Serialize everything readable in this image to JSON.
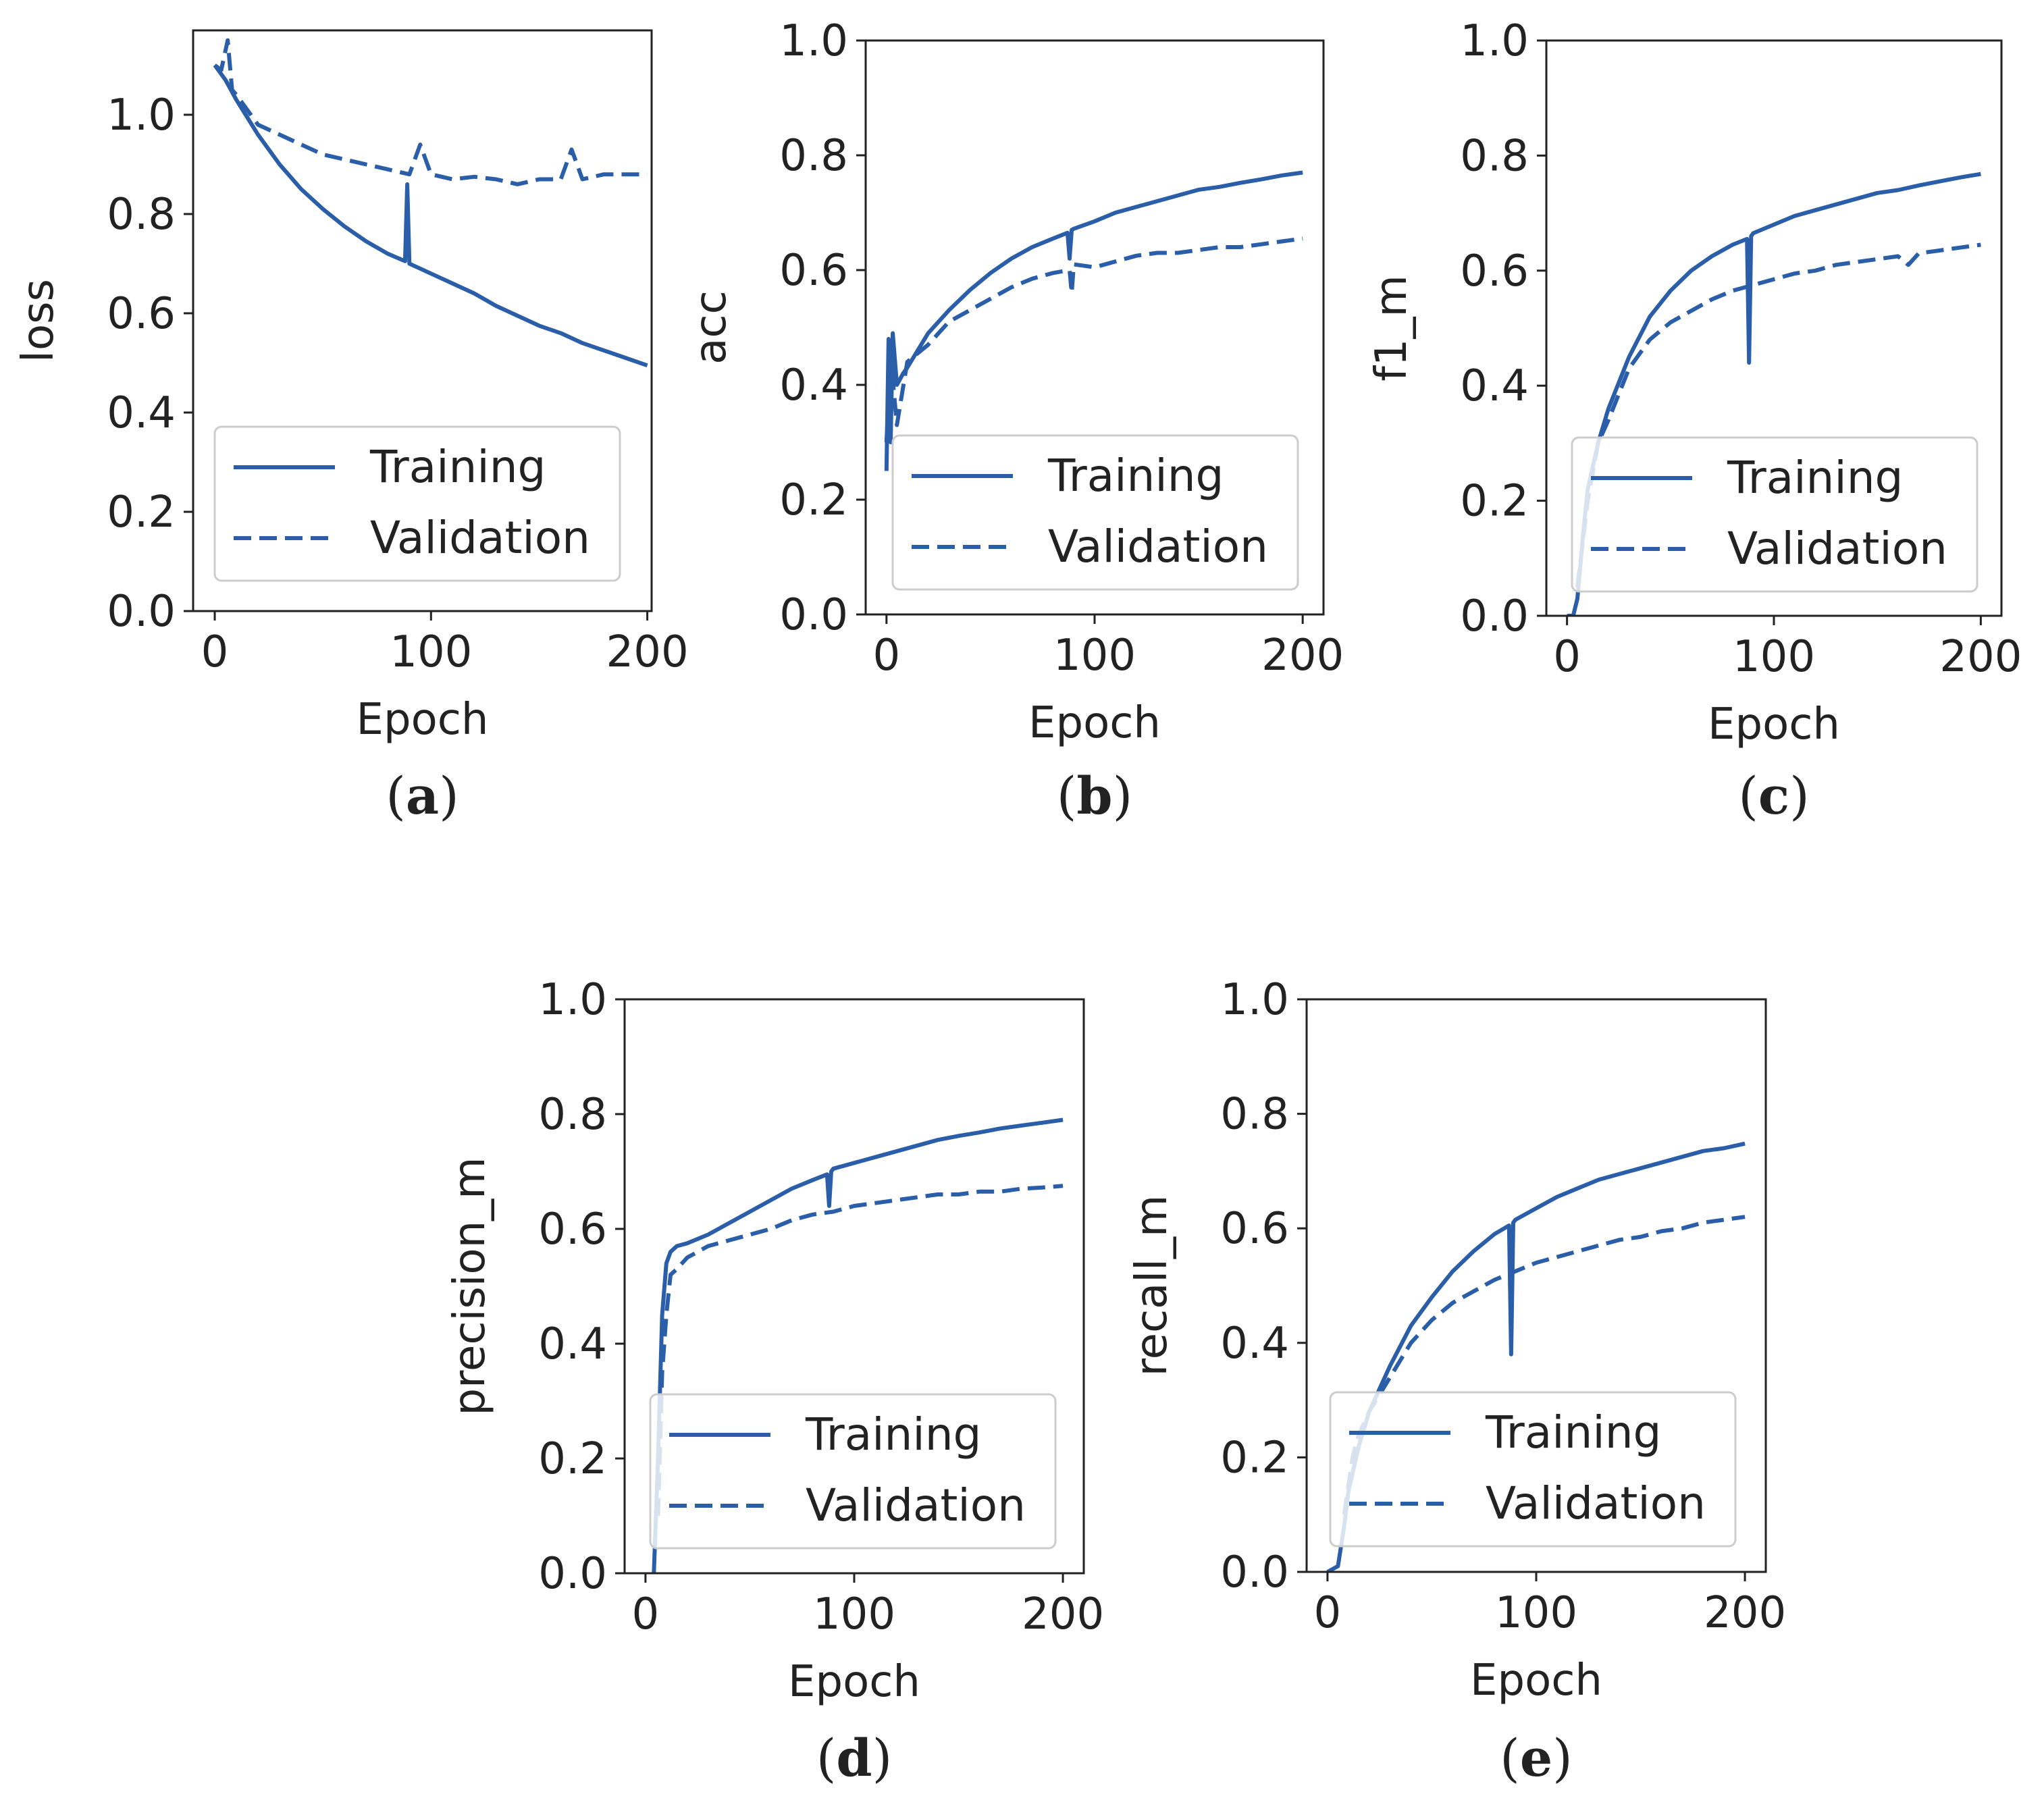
{
  "figure": {
    "legend_training": "Training",
    "legend_validation": "Validation",
    "line_color": "#2a5ea8",
    "legend_position": "lower-right"
  },
  "chart_data": [
    {
      "type": "line",
      "panel": "a",
      "caption": "a",
      "caption_open": "(",
      "caption_close": ")",
      "ylabel": "loss",
      "xlabel": "Epoch",
      "xlim": [
        -10,
        202
      ],
      "ylim": [
        0.0,
        1.17
      ],
      "xticks": [
        0,
        100,
        200
      ],
      "xtick_labels": [
        "0",
        "100",
        "200"
      ],
      "yticks": [
        0.0,
        0.2,
        0.4,
        0.6,
        0.8,
        1.0
      ],
      "ytick_labels": [
        "0.0",
        "0.2",
        "0.4",
        "0.6",
        "0.8",
        "1.0"
      ],
      "series": [
        {
          "name": "Training",
          "style": "solid",
          "x": [
            0,
            5,
            10,
            20,
            30,
            40,
            50,
            60,
            70,
            80,
            88,
            89,
            90,
            95,
            100,
            110,
            120,
            130,
            140,
            150,
            160,
            170,
            180,
            190,
            200
          ],
          "values": [
            1.1,
            1.07,
            1.03,
            0.96,
            0.9,
            0.85,
            0.81,
            0.775,
            0.745,
            0.72,
            0.705,
            0.86,
            0.7,
            0.69,
            0.68,
            0.66,
            0.64,
            0.615,
            0.595,
            0.575,
            0.56,
            0.54,
            0.525,
            0.51,
            0.495
          ]
        },
        {
          "name": "Validation",
          "style": "dashed",
          "x": [
            0,
            3,
            6,
            8,
            10,
            15,
            20,
            30,
            40,
            50,
            60,
            70,
            80,
            90,
            95,
            100,
            110,
            120,
            130,
            140,
            150,
            160,
            165,
            170,
            180,
            190,
            200
          ],
          "values": [
            1.1,
            1.09,
            1.15,
            1.05,
            1.04,
            1.01,
            0.98,
            0.96,
            0.94,
            0.92,
            0.91,
            0.9,
            0.89,
            0.88,
            0.94,
            0.88,
            0.87,
            0.875,
            0.87,
            0.86,
            0.87,
            0.87,
            0.93,
            0.87,
            0.88,
            0.88,
            0.88
          ]
        }
      ]
    },
    {
      "type": "line",
      "panel": "b",
      "caption": "b",
      "caption_open": "(",
      "caption_close": ")",
      "ylabel": "acc",
      "xlabel": "Epoch",
      "xlim": [
        -10,
        210
      ],
      "ylim": [
        0.0,
        1.0
      ],
      "xticks": [
        0,
        100,
        200
      ],
      "xtick_labels": [
        "0",
        "100",
        "200"
      ],
      "yticks": [
        0.0,
        0.2,
        0.4,
        0.6,
        0.8,
        1.0
      ],
      "ytick_labels": [
        "0.0",
        "0.2",
        "0.4",
        "0.6",
        "0.8",
        "1.0"
      ],
      "series": [
        {
          "name": "Training",
          "style": "solid",
          "x": [
            0,
            1,
            2,
            3,
            5,
            8,
            10,
            15,
            20,
            30,
            40,
            50,
            60,
            70,
            80,
            87,
            88,
            89,
            90,
            100,
            110,
            120,
            130,
            140,
            150,
            160,
            170,
            180,
            190,
            200
          ],
          "values": [
            0.25,
            0.48,
            0.3,
            0.49,
            0.4,
            0.42,
            0.43,
            0.46,
            0.49,
            0.53,
            0.565,
            0.595,
            0.62,
            0.64,
            0.655,
            0.665,
            0.62,
            0.67,
            0.672,
            0.685,
            0.7,
            0.71,
            0.72,
            0.73,
            0.74,
            0.745,
            0.752,
            0.758,
            0.765,
            0.77
          ]
        },
        {
          "name": "Validation",
          "style": "dashed",
          "x": [
            0,
            2,
            5,
            10,
            20,
            30,
            40,
            50,
            60,
            70,
            80,
            88,
            89,
            90,
            100,
            110,
            120,
            130,
            140,
            150,
            160,
            170,
            180,
            190,
            200
          ],
          "values": [
            0.3,
            0.45,
            0.33,
            0.44,
            0.47,
            0.51,
            0.53,
            0.55,
            0.57,
            0.585,
            0.595,
            0.6,
            0.56,
            0.61,
            0.605,
            0.615,
            0.625,
            0.63,
            0.63,
            0.635,
            0.64,
            0.64,
            0.645,
            0.65,
            0.655
          ]
        }
      ]
    },
    {
      "type": "line",
      "panel": "c",
      "caption": "c",
      "caption_open": "(",
      "caption_close": ")",
      "ylabel": "f1_m",
      "xlabel": "Epoch",
      "xlim": [
        -10,
        210
      ],
      "ylim": [
        0.0,
        1.0
      ],
      "xticks": [
        0,
        100,
        200
      ],
      "xtick_labels": [
        "0",
        "100",
        "200"
      ],
      "yticks": [
        0.0,
        0.2,
        0.4,
        0.6,
        0.8,
        1.0
      ],
      "ytick_labels": [
        "0.0",
        "0.2",
        "0.4",
        "0.6",
        "0.8",
        "1.0"
      ],
      "series": [
        {
          "name": "Training",
          "style": "solid",
          "x": [
            0,
            3,
            5,
            8,
            10,
            15,
            20,
            30,
            40,
            50,
            60,
            70,
            80,
            87,
            88,
            89,
            90,
            100,
            110,
            120,
            130,
            140,
            150,
            160,
            170,
            180,
            190,
            200
          ],
          "values": [
            0.0,
            0.0,
            0.03,
            0.15,
            0.22,
            0.3,
            0.36,
            0.45,
            0.52,
            0.565,
            0.6,
            0.625,
            0.645,
            0.655,
            0.44,
            0.66,
            0.665,
            0.68,
            0.695,
            0.705,
            0.715,
            0.725,
            0.735,
            0.74,
            0.748,
            0.755,
            0.762,
            0.768
          ]
        },
        {
          "name": "Validation",
          "style": "dashed",
          "x": [
            5,
            10,
            15,
            20,
            30,
            40,
            50,
            60,
            70,
            80,
            90,
            100,
            110,
            120,
            130,
            140,
            150,
            160,
            165,
            170,
            180,
            190,
            200
          ],
          "values": [
            0.05,
            0.2,
            0.3,
            0.34,
            0.43,
            0.48,
            0.51,
            0.53,
            0.55,
            0.565,
            0.575,
            0.585,
            0.595,
            0.6,
            0.61,
            0.615,
            0.62,
            0.625,
            0.61,
            0.63,
            0.635,
            0.64,
            0.645
          ]
        }
      ]
    },
    {
      "type": "line",
      "panel": "d",
      "caption": "d",
      "caption_open": "(",
      "caption_close": ")",
      "ylabel": "precision_m",
      "xlabel": "Epoch",
      "xlim": [
        -10,
        210
      ],
      "ylim": [
        0.0,
        1.0
      ],
      "xticks": [
        0,
        100,
        200
      ],
      "xtick_labels": [
        "0",
        "100",
        "200"
      ],
      "yticks": [
        0.0,
        0.2,
        0.4,
        0.6,
        0.8,
        1.0
      ],
      "ytick_labels": [
        "0.0",
        "0.2",
        "0.4",
        "0.6",
        "0.8",
        "1.0"
      ],
      "series": [
        {
          "name": "Training",
          "style": "solid",
          "x": [
            4,
            6,
            8,
            10,
            12,
            15,
            20,
            30,
            40,
            50,
            60,
            70,
            80,
            87,
            88,
            89,
            90,
            100,
            110,
            120,
            130,
            140,
            150,
            160,
            170,
            180,
            190,
            200
          ],
          "values": [
            0.0,
            0.2,
            0.45,
            0.54,
            0.56,
            0.57,
            0.575,
            0.59,
            0.61,
            0.63,
            0.65,
            0.67,
            0.685,
            0.695,
            0.64,
            0.7,
            0.705,
            0.715,
            0.725,
            0.735,
            0.745,
            0.755,
            0.762,
            0.768,
            0.775,
            0.78,
            0.785,
            0.79
          ]
        },
        {
          "name": "Validation",
          "style": "dashed",
          "x": [
            6,
            8,
            10,
            12,
            15,
            20,
            30,
            40,
            50,
            60,
            70,
            80,
            90,
            100,
            110,
            120,
            130,
            140,
            150,
            160,
            170,
            180,
            190,
            200
          ],
          "values": [
            0.1,
            0.35,
            0.45,
            0.52,
            0.53,
            0.55,
            0.57,
            0.58,
            0.59,
            0.6,
            0.615,
            0.625,
            0.63,
            0.64,
            0.645,
            0.65,
            0.655,
            0.66,
            0.66,
            0.665,
            0.665,
            0.67,
            0.672,
            0.675
          ]
        }
      ]
    },
    {
      "type": "line",
      "panel": "e",
      "caption": "e",
      "caption_open": "(",
      "caption_close": ")",
      "ylabel": "recall_m",
      "xlabel": "Epoch",
      "xlim": [
        -10,
        210
      ],
      "ylim": [
        0.0,
        1.0
      ],
      "xticks": [
        0,
        100,
        200
      ],
      "xtick_labels": [
        "0",
        "100",
        "200"
      ],
      "yticks": [
        0.0,
        0.2,
        0.4,
        0.6,
        0.8,
        1.0
      ],
      "ytick_labels": [
        "0.0",
        "0.2",
        "0.4",
        "0.6",
        "0.8",
        "1.0"
      ],
      "series": [
        {
          "name": "Training",
          "style": "solid",
          "x": [
            0,
            5,
            8,
            10,
            15,
            20,
            30,
            40,
            50,
            60,
            70,
            80,
            87,
            88,
            89,
            90,
            100,
            110,
            120,
            130,
            140,
            150,
            160,
            170,
            180,
            190,
            200
          ],
          "values": [
            0.0,
            0.01,
            0.08,
            0.14,
            0.22,
            0.28,
            0.36,
            0.43,
            0.48,
            0.525,
            0.56,
            0.59,
            0.605,
            0.38,
            0.61,
            0.615,
            0.635,
            0.655,
            0.67,
            0.685,
            0.695,
            0.705,
            0.715,
            0.725,
            0.735,
            0.74,
            0.748
          ]
        },
        {
          "name": "Validation",
          "style": "dashed",
          "x": [
            8,
            12,
            15,
            20,
            25,
            30,
            40,
            50,
            60,
            70,
            80,
            90,
            100,
            110,
            120,
            130,
            140,
            150,
            160,
            170,
            180,
            190,
            200
          ],
          "values": [
            0.1,
            0.2,
            0.24,
            0.28,
            0.31,
            0.34,
            0.4,
            0.44,
            0.47,
            0.49,
            0.51,
            0.525,
            0.54,
            0.55,
            0.56,
            0.57,
            0.58,
            0.585,
            0.595,
            0.6,
            0.61,
            0.615,
            0.62
          ]
        }
      ]
    }
  ]
}
